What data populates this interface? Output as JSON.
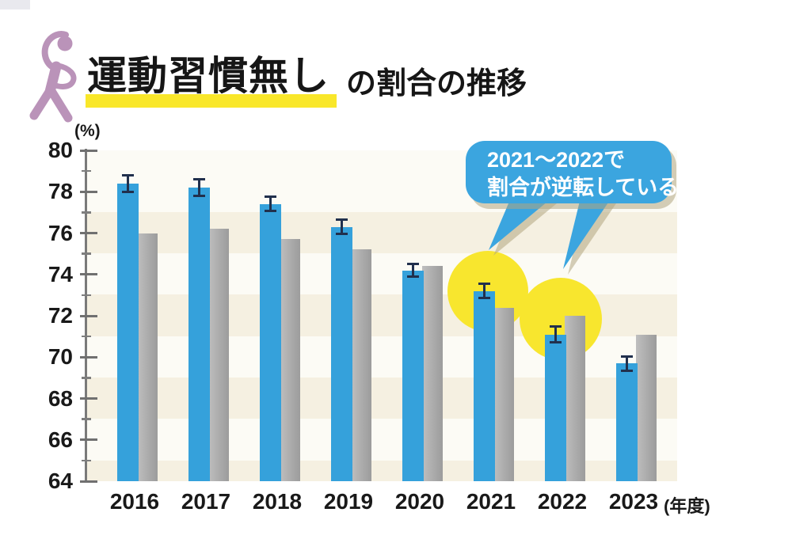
{
  "title": {
    "highlight": "運動習慣無し",
    "rest": "の割合の推移"
  },
  "axis": {
    "unit_y": "(%)",
    "unit_x": "(年度)"
  },
  "annotation": {
    "line1": "2021〜2022で",
    "line2": "割合が逆転している",
    "highlight_years": [
      "2021",
      "2022"
    ]
  },
  "chart_data": {
    "type": "bar",
    "title": "運動習慣無しの割合の推移",
    "categories": [
      "2016",
      "2017",
      "2018",
      "2019",
      "2020",
      "2021",
      "2022",
      "2023"
    ],
    "series": [
      {
        "name": "blue-bars",
        "color": "#35A1DB",
        "values": [
          78.4,
          78.2,
          77.4,
          76.3,
          74.2,
          73.2,
          71.1,
          69.7
        ],
        "errors": [
          0.45,
          0.45,
          0.4,
          0.4,
          0.35,
          0.4,
          0.45,
          0.4
        ]
      },
      {
        "name": "gray-bars",
        "color": "#ABABAB",
        "values": [
          76.0,
          76.2,
          75.7,
          75.2,
          74.4,
          72.4,
          72.0,
          71.1
        ]
      }
    ],
    "ylabel": "%",
    "xlabel": "年度",
    "ylim": [
      64,
      80
    ],
    "yticks": [
      80,
      78,
      76,
      74,
      72,
      70,
      68,
      66,
      64
    ],
    "grid": "striped-bands",
    "legend": "none"
  },
  "colors": {
    "blue": "#35A1DB",
    "gray": "#ABABAB",
    "yellow": "#F8E62E",
    "bubble_blue": "#3BA5DF",
    "error_navy": "#21304d",
    "person_purple": "#BA93B9"
  }
}
